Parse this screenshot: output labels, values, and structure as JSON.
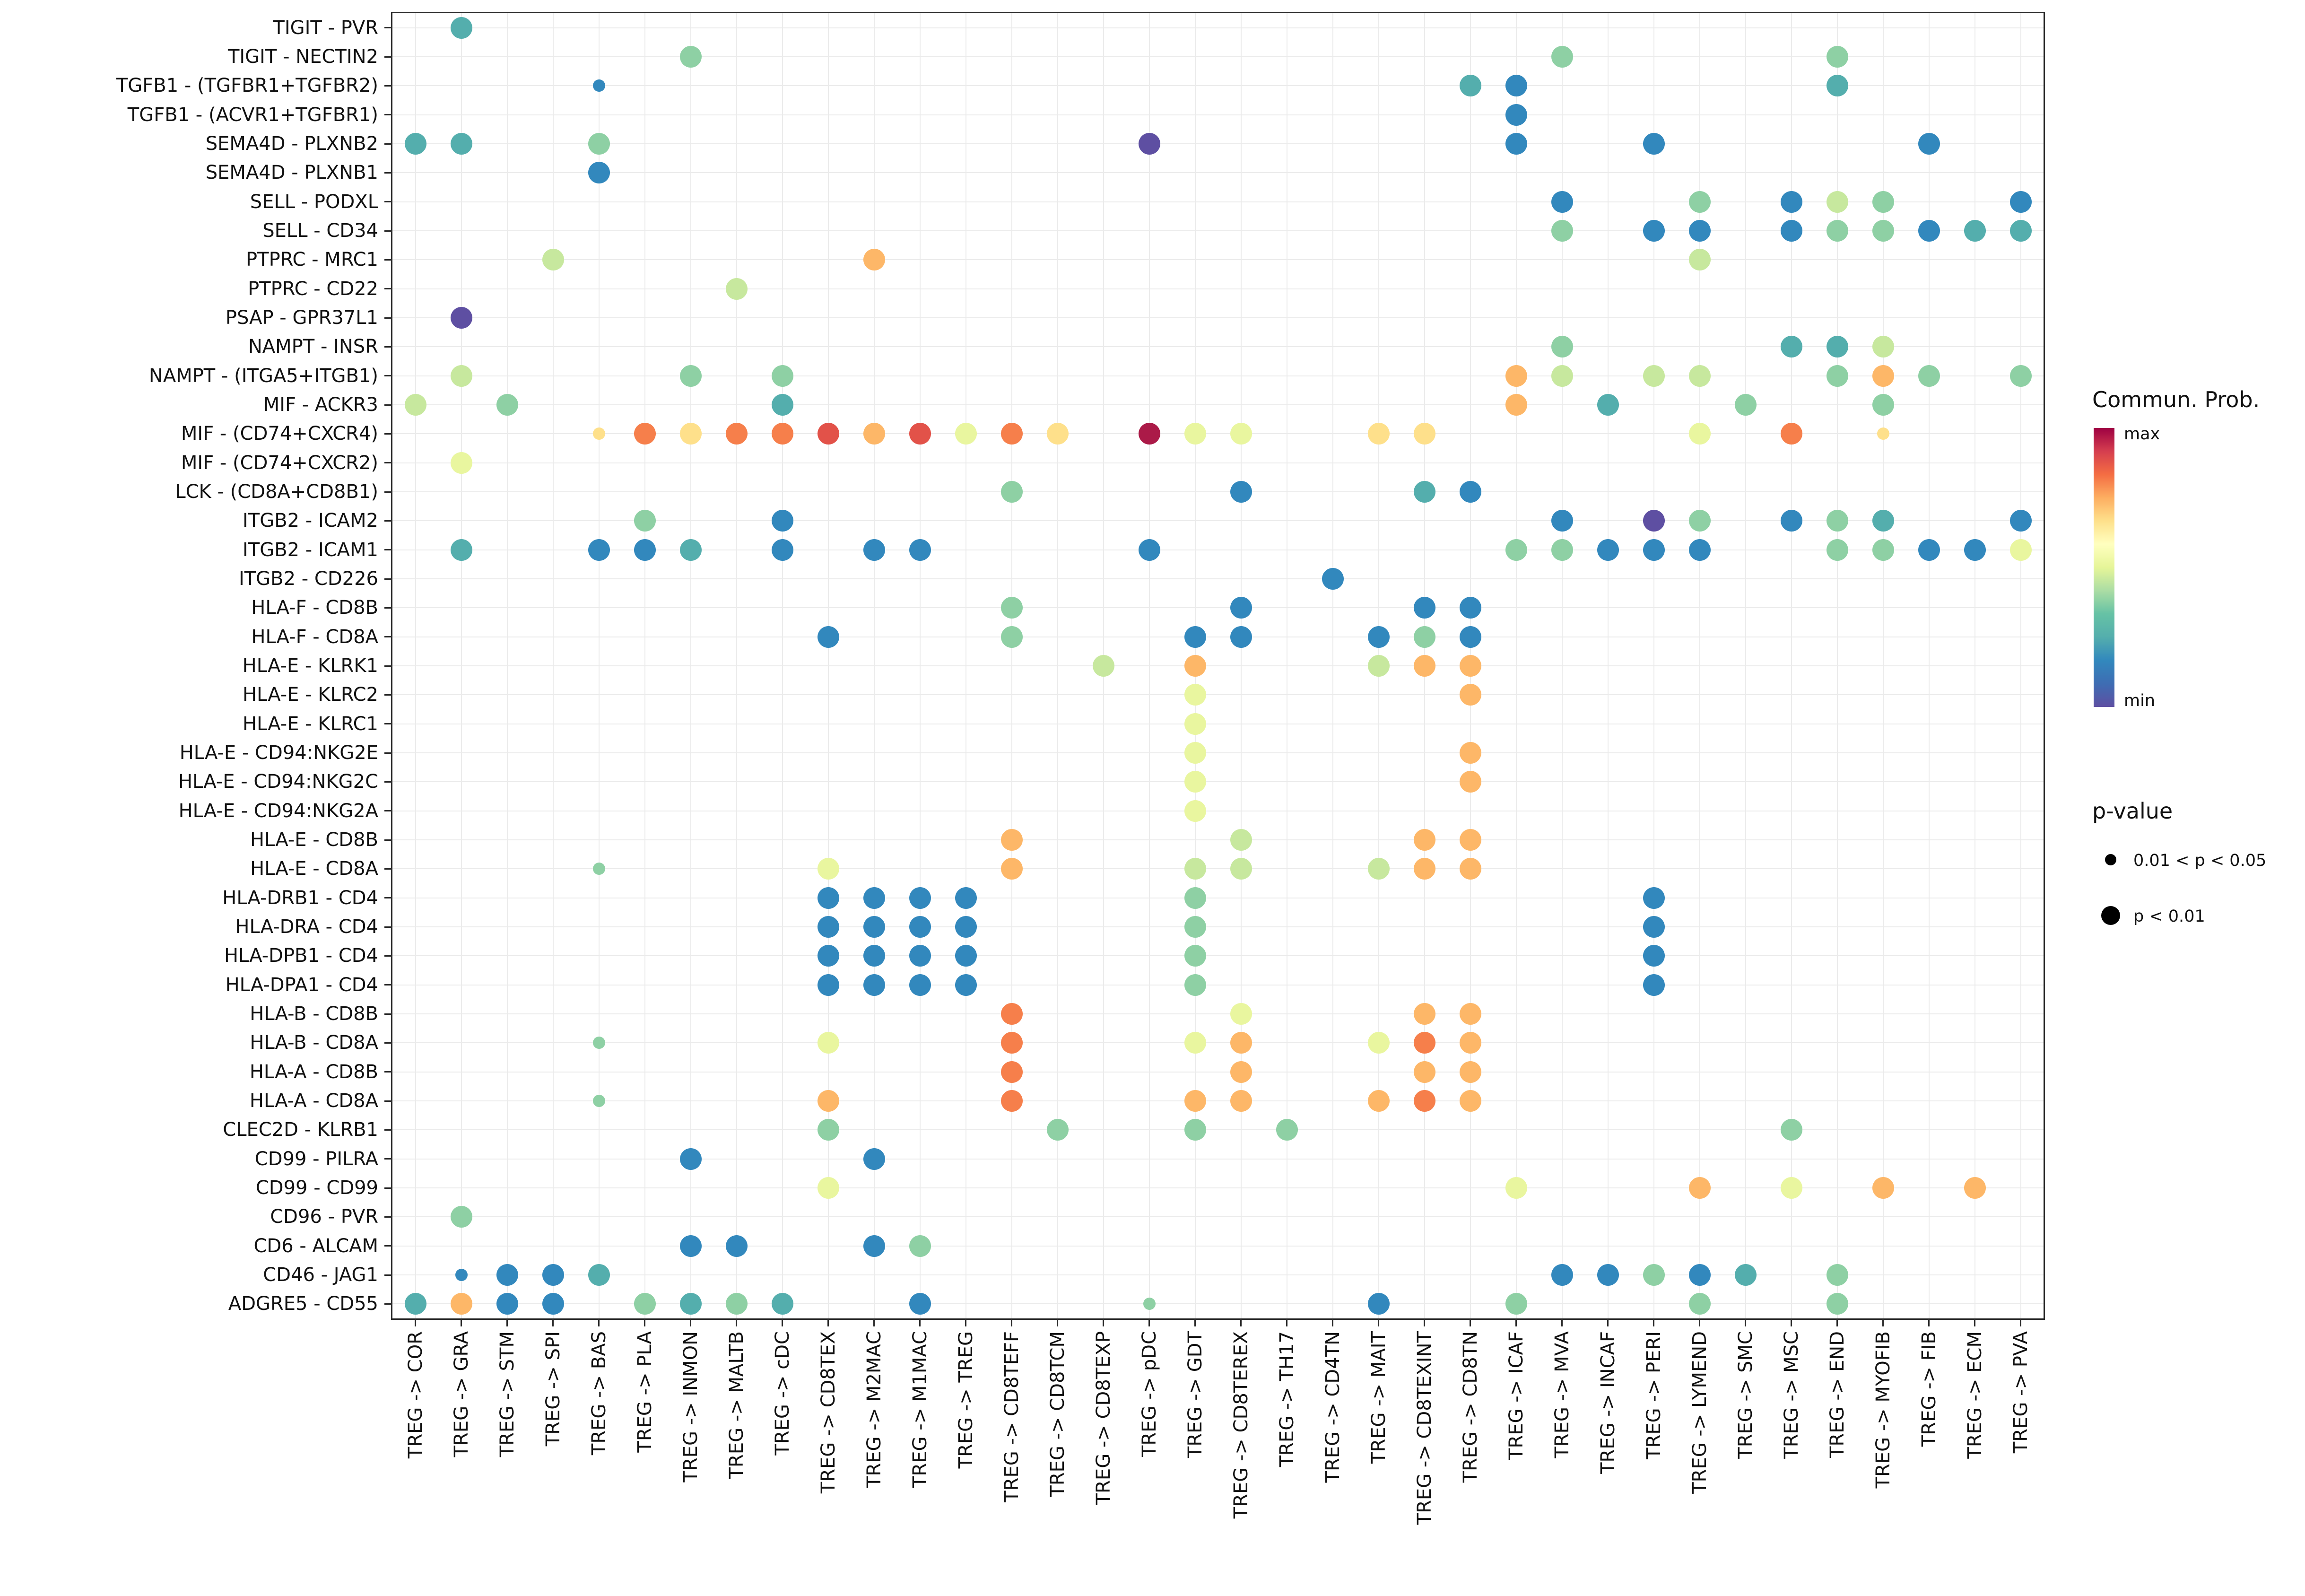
{
  "chart_data": {
    "type": "scatter",
    "subtype": "bubble-dotplot",
    "title": "",
    "xlabel": "",
    "ylabel": "",
    "grid": true,
    "rows": [
      "TIGIT - PVR",
      "TIGIT - NECTIN2",
      "TGFB1 - (TGFBR1+TGFBR2)",
      "TGFB1 - (ACVR1+TGFBR1)",
      "SEMA4D - PLXNB2",
      "SEMA4D - PLXNB1",
      "SELL - PODXL",
      "SELL - CD34",
      "PTPRC - MRC1",
      "PTPRC - CD22",
      "PSAP - GPR37L1",
      "NAMPT - INSR",
      "NAMPT - (ITGA5+ITGB1)",
      "MIF - ACKR3",
      "MIF - (CD74+CXCR4)",
      "MIF - (CD74+CXCR2)",
      "LCK - (CD8A+CD8B1)",
      "ITGB2 - ICAM2",
      "ITGB2 - ICAM1",
      "ITGB2 - CD226",
      "HLA-F - CD8B",
      "HLA-F - CD8A",
      "HLA-E - KLRK1",
      "HLA-E - KLRC2",
      "HLA-E - KLRC1",
      "HLA-E - CD94:NKG2E",
      "HLA-E - CD94:NKG2C",
      "HLA-E - CD94:NKG2A",
      "HLA-E - CD8B",
      "HLA-E - CD8A",
      "HLA-DRB1 - CD4",
      "HLA-DRA - CD4",
      "HLA-DPB1 - CD4",
      "HLA-DPA1 - CD4",
      "HLA-B - CD8B",
      "HLA-B - CD8A",
      "HLA-A - CD8B",
      "HLA-A - CD8A",
      "CLEC2D - KLRB1",
      "CD99 - PILRA",
      "CD99 - CD99",
      "CD96 - PVR",
      "CD6 - ALCAM",
      "CD46 - JAG1",
      "ADGRE5 - CD55"
    ],
    "cols": [
      "TREG -> COR",
      "TREG -> GRA",
      "TREG -> STM",
      "TREG -> SPI",
      "TREG -> BAS",
      "TREG -> PLA",
      "TREG -> INMON",
      "TREG -> MALTB",
      "TREG -> cDC",
      "TREG -> CD8TEX",
      "TREG -> M2MAC",
      "TREG -> M1MAC",
      "TREG -> TREG",
      "TREG -> CD8TEFF",
      "TREG -> CD8TCM",
      "TREG -> CD8TEXP",
      "TREG -> pDC",
      "TREG -> GDT",
      "TREG -> CD8TEREX",
      "TREG -> TH17",
      "TREG -> CD4TN",
      "TREG -> MAIT",
      "TREG -> CD8TEXINT",
      "TREG -> CD8TN",
      "TREG -> ICAF",
      "TREG -> MVA",
      "TREG -> INCAF",
      "TREG -> PERI",
      "TREG -> LYMEND",
      "TREG -> SMC",
      "TREG -> MSC",
      "TREG -> END",
      "TREG -> MYOFIB",
      "TREG -> FIB",
      "TREG -> ECM",
      "TREG -> PVA"
    ],
    "palette": {
      "p": "#5E4FA2",
      "b": "#3288BD",
      "t": "#54AEAD",
      "g": "#8ED0A4",
      "G": "#C7E89E",
      "y": "#E9F69F",
      "Y": "#FEE08B",
      "o": "#FDB768",
      "O": "#F67F4B",
      "r": "#E25249",
      "R": "#AB1A48"
    },
    "point_format": "[row_index, col_index, color_key(commun_prob_level), size(2 = p<0.01, 1 = 0.01<p<0.05)]",
    "points": [
      [
        0,
        1,
        "t",
        2
      ],
      [
        1,
        6,
        "g",
        2
      ],
      [
        1,
        25,
        "g",
        2
      ],
      [
        1,
        31,
        "g",
        2
      ],
      [
        2,
        4,
        "b",
        1
      ],
      [
        2,
        23,
        "t",
        2
      ],
      [
        2,
        24,
        "b",
        2
      ],
      [
        2,
        31,
        "t",
        2
      ],
      [
        3,
        24,
        "b",
        2
      ],
      [
        4,
        0,
        "t",
        2
      ],
      [
        4,
        1,
        "t",
        2
      ],
      [
        4,
        4,
        "g",
        2
      ],
      [
        4,
        16,
        "p",
        2
      ],
      [
        4,
        24,
        "b",
        2
      ],
      [
        4,
        27,
        "b",
        2
      ],
      [
        4,
        33,
        "b",
        2
      ],
      [
        5,
        4,
        "b",
        2
      ],
      [
        6,
        25,
        "b",
        2
      ],
      [
        6,
        28,
        "g",
        2
      ],
      [
        6,
        30,
        "b",
        2
      ],
      [
        6,
        31,
        "G",
        2
      ],
      [
        6,
        32,
        "g",
        2
      ],
      [
        6,
        35,
        "b",
        2
      ],
      [
        7,
        25,
        "g",
        2
      ],
      [
        7,
        27,
        "b",
        2
      ],
      [
        7,
        28,
        "b",
        2
      ],
      [
        7,
        30,
        "b",
        2
      ],
      [
        7,
        31,
        "g",
        2
      ],
      [
        7,
        32,
        "g",
        2
      ],
      [
        7,
        33,
        "b",
        2
      ],
      [
        7,
        34,
        "t",
        2
      ],
      [
        7,
        35,
        "t",
        2
      ],
      [
        8,
        3,
        "G",
        2
      ],
      [
        8,
        10,
        "o",
        2
      ],
      [
        8,
        28,
        "G",
        2
      ],
      [
        9,
        7,
        "G",
        2
      ],
      [
        10,
        1,
        "p",
        2
      ],
      [
        11,
        25,
        "g",
        2
      ],
      [
        11,
        30,
        "t",
        2
      ],
      [
        11,
        31,
        "t",
        2
      ],
      [
        11,
        32,
        "G",
        2
      ],
      [
        12,
        1,
        "G",
        2
      ],
      [
        12,
        6,
        "g",
        2
      ],
      [
        12,
        8,
        "g",
        2
      ],
      [
        12,
        24,
        "o",
        2
      ],
      [
        12,
        25,
        "G",
        2
      ],
      [
        12,
        27,
        "G",
        2
      ],
      [
        12,
        28,
        "G",
        2
      ],
      [
        12,
        31,
        "g",
        2
      ],
      [
        12,
        32,
        "o",
        2
      ],
      [
        12,
        33,
        "g",
        2
      ],
      [
        12,
        35,
        "g",
        2
      ],
      [
        13,
        0,
        "G",
        2
      ],
      [
        13,
        2,
        "g",
        2
      ],
      [
        13,
        8,
        "t",
        2
      ],
      [
        13,
        24,
        "o",
        2
      ],
      [
        13,
        26,
        "t",
        2
      ],
      [
        13,
        29,
        "g",
        2
      ],
      [
        13,
        32,
        "g",
        2
      ],
      [
        14,
        4,
        "Y",
        1
      ],
      [
        14,
        5,
        "O",
        2
      ],
      [
        14,
        6,
        "Y",
        2
      ],
      [
        14,
        7,
        "O",
        2
      ],
      [
        14,
        8,
        "O",
        2
      ],
      [
        14,
        9,
        "r",
        2
      ],
      [
        14,
        10,
        "o",
        2
      ],
      [
        14,
        11,
        "r",
        2
      ],
      [
        14,
        12,
        "y",
        2
      ],
      [
        14,
        13,
        "O",
        2
      ],
      [
        14,
        14,
        "Y",
        2
      ],
      [
        14,
        16,
        "R",
        2
      ],
      [
        14,
        17,
        "y",
        2
      ],
      [
        14,
        18,
        "y",
        2
      ],
      [
        14,
        21,
        "Y",
        2
      ],
      [
        14,
        22,
        "Y",
        2
      ],
      [
        14,
        28,
        "y",
        2
      ],
      [
        14,
        30,
        "O",
        2
      ],
      [
        14,
        32,
        "Y",
        1
      ],
      [
        15,
        1,
        "y",
        2
      ],
      [
        16,
        13,
        "g",
        2
      ],
      [
        16,
        18,
        "b",
        2
      ],
      [
        16,
        22,
        "t",
        2
      ],
      [
        16,
        23,
        "b",
        2
      ],
      [
        17,
        5,
        "g",
        2
      ],
      [
        17,
        8,
        "b",
        2
      ],
      [
        17,
        25,
        "b",
        2
      ],
      [
        17,
        27,
        "p",
        2
      ],
      [
        17,
        28,
        "g",
        2
      ],
      [
        17,
        30,
        "b",
        2
      ],
      [
        17,
        31,
        "g",
        2
      ],
      [
        17,
        32,
        "t",
        2
      ],
      [
        17,
        35,
        "b",
        2
      ],
      [
        18,
        1,
        "t",
        2
      ],
      [
        18,
        4,
        "b",
        2
      ],
      [
        18,
        5,
        "b",
        2
      ],
      [
        18,
        6,
        "t",
        2
      ],
      [
        18,
        8,
        "b",
        2
      ],
      [
        18,
        10,
        "b",
        2
      ],
      [
        18,
        11,
        "b",
        2
      ],
      [
        18,
        16,
        "b",
        2
      ],
      [
        18,
        24,
        "g",
        2
      ],
      [
        18,
        25,
        "g",
        2
      ],
      [
        18,
        26,
        "b",
        2
      ],
      [
        18,
        27,
        "b",
        2
      ],
      [
        18,
        28,
        "b",
        2
      ],
      [
        18,
        31,
        "g",
        2
      ],
      [
        18,
        32,
        "g",
        2
      ],
      [
        18,
        33,
        "b",
        2
      ],
      [
        18,
        34,
        "b",
        2
      ],
      [
        18,
        35,
        "y",
        2
      ],
      [
        19,
        20,
        "b",
        2
      ],
      [
        20,
        13,
        "g",
        2
      ],
      [
        20,
        18,
        "b",
        2
      ],
      [
        20,
        22,
        "b",
        2
      ],
      [
        20,
        23,
        "b",
        2
      ],
      [
        21,
        9,
        "b",
        2
      ],
      [
        21,
        13,
        "g",
        2
      ],
      [
        21,
        17,
        "b",
        2
      ],
      [
        21,
        18,
        "b",
        2
      ],
      [
        21,
        21,
        "b",
        2
      ],
      [
        21,
        22,
        "g",
        2
      ],
      [
        21,
        23,
        "b",
        2
      ],
      [
        22,
        15,
        "G",
        2
      ],
      [
        22,
        17,
        "o",
        2
      ],
      [
        22,
        21,
        "G",
        2
      ],
      [
        22,
        22,
        "o",
        2
      ],
      [
        22,
        23,
        "o",
        2
      ],
      [
        23,
        17,
        "y",
        2
      ],
      [
        23,
        23,
        "o",
        2
      ],
      [
        24,
        17,
        "y",
        2
      ],
      [
        25,
        17,
        "y",
        2
      ],
      [
        25,
        23,
        "o",
        2
      ],
      [
        26,
        17,
        "y",
        2
      ],
      [
        26,
        23,
        "o",
        2
      ],
      [
        27,
        17,
        "y",
        2
      ],
      [
        28,
        13,
        "o",
        2
      ],
      [
        28,
        18,
        "G",
        2
      ],
      [
        28,
        22,
        "o",
        2
      ],
      [
        28,
        23,
        "o",
        2
      ],
      [
        29,
        4,
        "g",
        1
      ],
      [
        29,
        9,
        "y",
        2
      ],
      [
        29,
        13,
        "o",
        2
      ],
      [
        29,
        17,
        "G",
        2
      ],
      [
        29,
        18,
        "G",
        2
      ],
      [
        29,
        21,
        "G",
        2
      ],
      [
        29,
        22,
        "o",
        2
      ],
      [
        29,
        23,
        "o",
        2
      ],
      [
        30,
        9,
        "b",
        2
      ],
      [
        30,
        10,
        "b",
        2
      ],
      [
        30,
        11,
        "b",
        2
      ],
      [
        30,
        12,
        "b",
        2
      ],
      [
        30,
        17,
        "g",
        2
      ],
      [
        30,
        27,
        "b",
        2
      ],
      [
        31,
        9,
        "b",
        2
      ],
      [
        31,
        10,
        "b",
        2
      ],
      [
        31,
        11,
        "b",
        2
      ],
      [
        31,
        12,
        "b",
        2
      ],
      [
        31,
        17,
        "g",
        2
      ],
      [
        31,
        27,
        "b",
        2
      ],
      [
        32,
        9,
        "b",
        2
      ],
      [
        32,
        10,
        "b",
        2
      ],
      [
        32,
        11,
        "b",
        2
      ],
      [
        32,
        12,
        "b",
        2
      ],
      [
        32,
        17,
        "g",
        2
      ],
      [
        32,
        27,
        "b",
        2
      ],
      [
        33,
        9,
        "b",
        2
      ],
      [
        33,
        10,
        "b",
        2
      ],
      [
        33,
        11,
        "b",
        2
      ],
      [
        33,
        12,
        "b",
        2
      ],
      [
        33,
        17,
        "g",
        2
      ],
      [
        33,
        27,
        "b",
        2
      ],
      [
        34,
        13,
        "O",
        2
      ],
      [
        34,
        18,
        "y",
        2
      ],
      [
        34,
        22,
        "o",
        2
      ],
      [
        34,
        23,
        "o",
        2
      ],
      [
        35,
        4,
        "g",
        1
      ],
      [
        35,
        9,
        "y",
        2
      ],
      [
        35,
        13,
        "O",
        2
      ],
      [
        35,
        17,
        "y",
        2
      ],
      [
        35,
        18,
        "o",
        2
      ],
      [
        35,
        21,
        "y",
        2
      ],
      [
        35,
        22,
        "O",
        2
      ],
      [
        35,
        23,
        "o",
        2
      ],
      [
        36,
        13,
        "O",
        2
      ],
      [
        36,
        18,
        "o",
        2
      ],
      [
        36,
        22,
        "o",
        2
      ],
      [
        36,
        23,
        "o",
        2
      ],
      [
        37,
        4,
        "g",
        1
      ],
      [
        37,
        9,
        "o",
        2
      ],
      [
        37,
        13,
        "O",
        2
      ],
      [
        37,
        17,
        "o",
        2
      ],
      [
        37,
        18,
        "o",
        2
      ],
      [
        37,
        21,
        "o",
        2
      ],
      [
        37,
        22,
        "O",
        2
      ],
      [
        37,
        23,
        "o",
        2
      ],
      [
        38,
        9,
        "g",
        2
      ],
      [
        38,
        14,
        "g",
        2
      ],
      [
        38,
        17,
        "g",
        2
      ],
      [
        38,
        19,
        "g",
        2
      ],
      [
        38,
        30,
        "g",
        2
      ],
      [
        39,
        6,
        "b",
        2
      ],
      [
        39,
        10,
        "b",
        2
      ],
      [
        40,
        9,
        "y",
        2
      ],
      [
        40,
        24,
        "y",
        2
      ],
      [
        40,
        28,
        "o",
        2
      ],
      [
        40,
        30,
        "y",
        2
      ],
      [
        40,
        32,
        "o",
        2
      ],
      [
        40,
        34,
        "o",
        2
      ],
      [
        41,
        1,
        "g",
        2
      ],
      [
        42,
        6,
        "b",
        2
      ],
      [
        42,
        7,
        "b",
        2
      ],
      [
        42,
        10,
        "b",
        2
      ],
      [
        42,
        11,
        "g",
        2
      ],
      [
        43,
        1,
        "b",
        1
      ],
      [
        43,
        2,
        "b",
        2
      ],
      [
        43,
        3,
        "b",
        2
      ],
      [
        43,
        4,
        "t",
        2
      ],
      [
        43,
        25,
        "b",
        2
      ],
      [
        43,
        26,
        "b",
        2
      ],
      [
        43,
        27,
        "g",
        2
      ],
      [
        43,
        28,
        "b",
        2
      ],
      [
        43,
        29,
        "t",
        2
      ],
      [
        43,
        31,
        "g",
        2
      ],
      [
        44,
        0,
        "t",
        2
      ],
      [
        44,
        1,
        "o",
        2
      ],
      [
        44,
        2,
        "b",
        2
      ],
      [
        44,
        3,
        "b",
        2
      ],
      [
        44,
        5,
        "g",
        2
      ],
      [
        44,
        6,
        "t",
        2
      ],
      [
        44,
        7,
        "g",
        2
      ],
      [
        44,
        8,
        "t",
        2
      ],
      [
        44,
        11,
        "b",
        2
      ],
      [
        44,
        16,
        "g",
        1
      ],
      [
        44,
        21,
        "b",
        2
      ],
      [
        44,
        24,
        "g",
        2
      ],
      [
        44,
        28,
        "g",
        2
      ],
      [
        44,
        31,
        "g",
        2
      ]
    ],
    "legend": {
      "colorbar_title": "Commun. Prob.",
      "max_label": "max",
      "min_label": "min",
      "gradient": [
        "#5E4FA2",
        "#3E6DB3",
        "#3288BD",
        "#54AEAD",
        "#66C2A5",
        "#ABDDA4",
        "#E6F598",
        "#FFFFBF",
        "#FEE08B",
        "#FDAE61",
        "#F46D43",
        "#D53E4F",
        "#9E0142"
      ],
      "pvalue_title": "p-value",
      "pvalue_items": [
        {
          "label": "0.01 < p < 0.05",
          "size": "small"
        },
        {
          "label": "p < 0.01",
          "size": "large"
        }
      ]
    }
  }
}
